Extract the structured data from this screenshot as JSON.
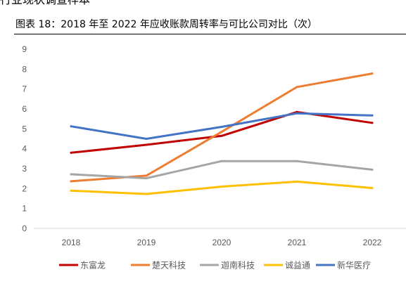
{
  "page": {
    "top_fragment": "行业现状调查样本",
    "figure_title": "图表  18：2018 年至 2022 年应收账款周转率与可比公司对比（次）"
  },
  "chart_data": {
    "type": "line",
    "title": "",
    "xlabel": "",
    "ylabel": "",
    "categories": [
      "2018",
      "2019",
      "2020",
      "2021",
      "2022"
    ],
    "ylim": [
      0,
      9
    ],
    "yticks": [
      "0",
      "1",
      "2",
      "3",
      "4",
      "5",
      "6",
      "7",
      "8",
      "9"
    ],
    "grid": false,
    "legend_position": "bottom",
    "series": [
      {
        "name": "东富龙",
        "color": "#C00000",
        "values": [
          3.8,
          4.2,
          4.65,
          5.85,
          5.3
        ]
      },
      {
        "name": "楚天科技",
        "color": "#ED7D31",
        "values": [
          2.37,
          2.65,
          4.85,
          7.1,
          7.78
        ]
      },
      {
        "name": "迦南科技",
        "color": "#A5A5A5",
        "values": [
          2.72,
          2.52,
          3.38,
          3.38,
          2.95
        ]
      },
      {
        "name": "诚益通",
        "color": "#FFC000",
        "values": [
          1.9,
          1.73,
          2.1,
          2.35,
          2.03
        ]
      },
      {
        "name": "新华医疗",
        "color": "#4472C4",
        "values": [
          5.13,
          4.5,
          5.1,
          5.78,
          5.67
        ]
      }
    ]
  }
}
